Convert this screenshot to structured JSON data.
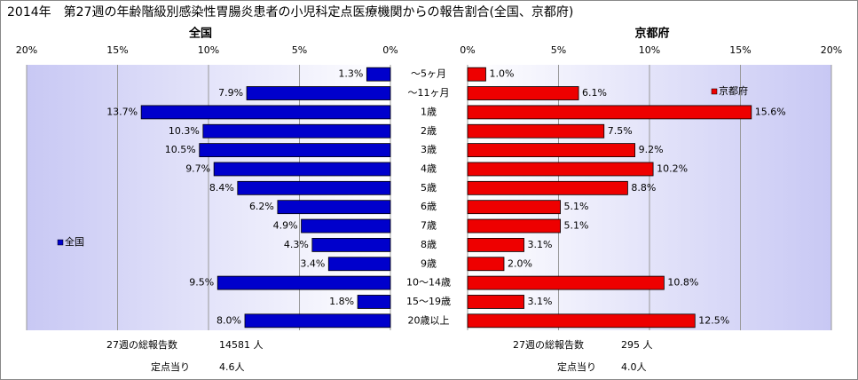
{
  "title": "2014年　第27週の年齢階級別感染性胃腸炎患者の小児科定点医療機関からの報告割合(全国、京都府)",
  "chart_data": [
    {
      "type": "bar",
      "orientation": "horizontal",
      "title": "全国",
      "categories": [
        "～5ヶ月",
        "～11ヶ月",
        "1歳",
        "2歳",
        "3歳",
        "4歳",
        "5歳",
        "6歳",
        "7歳",
        "8歳",
        "9歳",
        "10～14歳",
        "15～19歳",
        "20歳以上"
      ],
      "series": [
        {
          "name": "全国",
          "color": "#0000cc",
          "values": [
            1.3,
            7.9,
            13.7,
            10.3,
            10.5,
            9.7,
            8.4,
            6.2,
            4.9,
            4.3,
            3.4,
            9.5,
            1.8,
            8.0
          ],
          "value_labels": [
            "1.3%",
            "7.9%",
            "13.7%",
            "10.3%",
            "10.5%",
            "9.7%",
            "8.4%",
            "6.2%",
            "4.9%",
            "4.3%",
            "3.4%",
            "9.5%",
            "1.8%",
            "8.0%"
          ]
        }
      ],
      "xlim": [
        20,
        0
      ],
      "xticks": [
        {
          "value": 20,
          "label": "20%"
        },
        {
          "value": 15,
          "label": "15%"
        },
        {
          "value": 10,
          "label": "10%"
        },
        {
          "value": 5,
          "label": "5%"
        },
        {
          "value": 0,
          "label": "0%"
        }
      ],
      "grid": true,
      "notes": [
        {
          "label": "27週の総報告数",
          "value": "14581 人"
        },
        {
          "label": "定点当り",
          "value": "4.6人"
        }
      ]
    },
    {
      "type": "bar",
      "orientation": "horizontal",
      "title": "京都府",
      "series": [
        {
          "name": "京都府",
          "color": "#ee0000",
          "values": [
            1.0,
            6.1,
            15.6,
            7.5,
            9.2,
            10.2,
            8.8,
            5.1,
            5.1,
            3.1,
            2.0,
            10.8,
            3.1,
            12.5
          ],
          "value_labels": [
            "1.0%",
            "6.1%",
            "15.6%",
            "7.5%",
            "9.2%",
            "10.2%",
            "8.8%",
            "5.1%",
            "5.1%",
            "3.1%",
            "2.0%",
            "10.8%",
            "3.1%",
            "12.5%"
          ]
        }
      ],
      "xlim": [
        0,
        20
      ],
      "xticks": [
        {
          "value": 0,
          "label": "0%"
        },
        {
          "value": 5,
          "label": "5%"
        },
        {
          "value": 10,
          "label": "10%"
        },
        {
          "value": 15,
          "label": "15%"
        },
        {
          "value": 20,
          "label": "20%"
        }
      ],
      "grid": true,
      "notes": [
        {
          "label": "27週の総報告数",
          "value": "295 人"
        },
        {
          "label": "定点当り",
          "value": "4.0人"
        }
      ]
    }
  ]
}
